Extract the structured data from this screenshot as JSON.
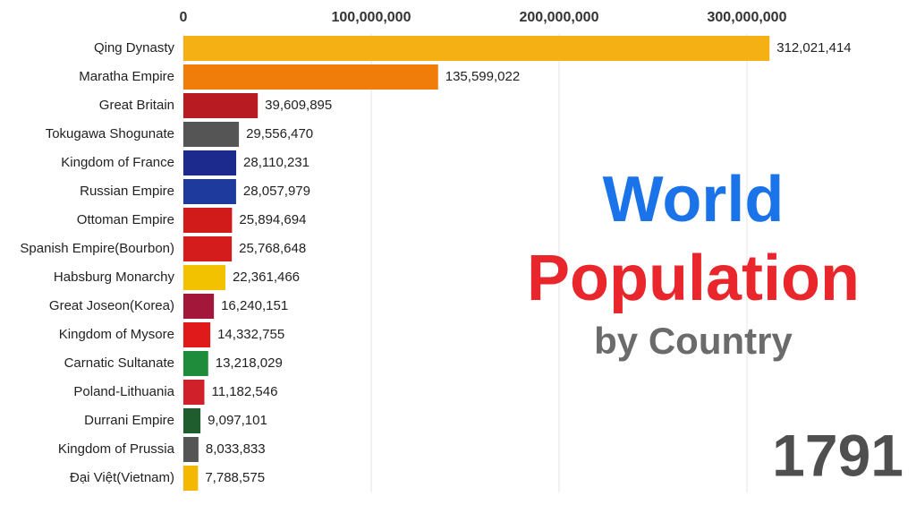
{
  "chart_data": {
    "type": "bar",
    "orientation": "horizontal",
    "title_lines": [
      "World",
      "Population"
    ],
    "subtitle": "by Country",
    "annotation": "1791",
    "categories": [
      "Qing Dynasty",
      "Maratha Empire",
      "Great Britain",
      "Tokugawa Shogunate",
      "Kingdom of France",
      "Russian Empire",
      "Ottoman Empire",
      "Spanish Empire(Bourbon)",
      "Habsburg Monarchy",
      "Great Joseon(Korea)",
      "Kingdom of Mysore",
      "Carnatic Sultanate",
      "Poland-Lithuania",
      "Durrani Empire",
      "Kingdom of Prussia",
      "Đại Việt(Vietnam)"
    ],
    "values": [
      312021414,
      135599022,
      39609895,
      29556470,
      28110231,
      28057979,
      25894694,
      25768648,
      22361466,
      16240151,
      14332755,
      13218029,
      11182546,
      9097101,
      8033833,
      7788575
    ],
    "value_labels": [
      "312,021,414",
      "135,599,022",
      "39,609,895",
      "29,556,470",
      "28,110,231",
      "28,057,979",
      "25,894,694",
      "25,768,648",
      "22,361,466",
      "16,240,151",
      "14,332,755",
      "13,218,029",
      "11,182,546",
      "9,097,101",
      "8,033,833",
      "7,788,575"
    ],
    "colors": [
      "#f5b014",
      "#f07d0a",
      "#b81c22",
      "#555555",
      "#1c2a8e",
      "#1e3a9c",
      "#d11a1a",
      "#d41c1c",
      "#f2c200",
      "#a3173a",
      "#e01a1a",
      "#1e8c3a",
      "#d0202a",
      "#1f5c2e",
      "#555555",
      "#f5b800"
    ],
    "xlim": [
      0,
      340000000
    ],
    "xticks": [
      0,
      {
        "value": 100000000,
        "label": "100,000,000"
      },
      {
        "value": 200000000,
        "label": "200,000,000"
      },
      {
        "value": 300000000,
        "label": "300,000,000"
      }
    ],
    "grid": true
  }
}
